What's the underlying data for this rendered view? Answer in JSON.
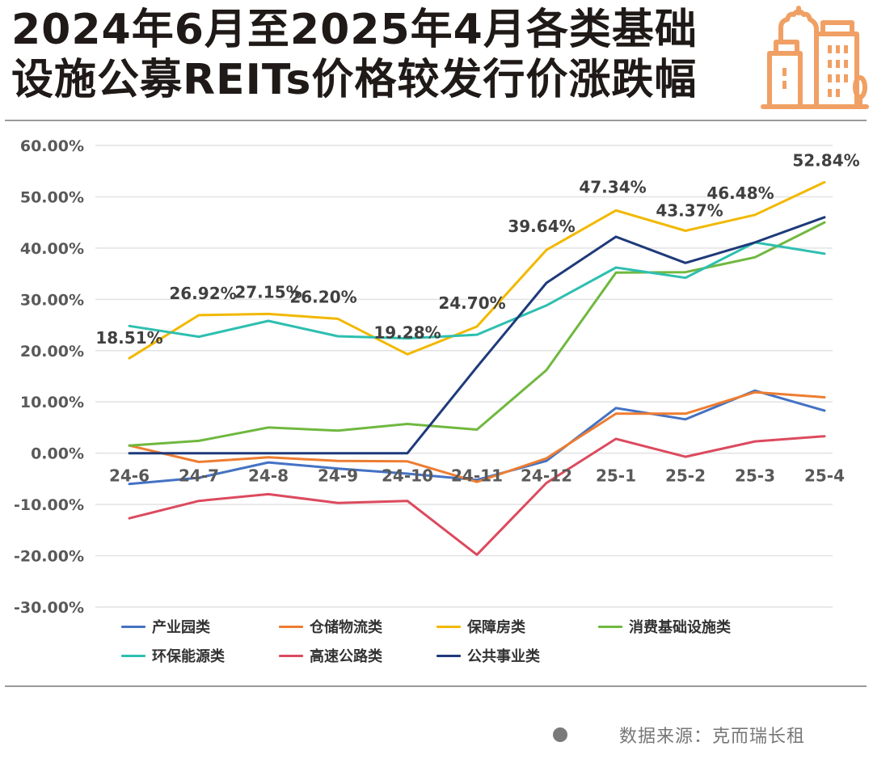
{
  "header": {
    "title_line1": "2024年6月至2025年4月各类基础",
    "title_line2": "设施公募REITs价格较发行价涨跌幅",
    "logo_icon": "city-buildings-icon",
    "logo_color": "#F0A064"
  },
  "source": {
    "bullet_icon": "dot-icon",
    "text": "数据来源：克而瑞长租"
  },
  "chart_data": {
    "type": "line",
    "title": "2024年6月至2025年4月各类基础设施公募REITs价格较发行价涨跌幅",
    "xlabel": "",
    "ylabel": "",
    "ylim": [
      -30,
      60
    ],
    "yticks": [
      60,
      50,
      40,
      30,
      20,
      10,
      0,
      -10,
      -20,
      -30
    ],
    "ytick_labels": [
      "60.00%",
      "50.00%",
      "40.00%",
      "30.00%",
      "20.00%",
      "10.00%",
      "0.00%",
      "-10.00%",
      "-20.00%",
      "-30.00%"
    ],
    "grid": true,
    "legend_position": "bottom",
    "categories": [
      "24-6",
      "24-7",
      "24-8",
      "24-9",
      "24-10",
      "24-11",
      "24-12",
      "25-1",
      "25-2",
      "25-3",
      "25-4"
    ],
    "series": [
      {
        "name": "产业园类",
        "color": "#4472C4",
        "values": [
          -6.0,
          -4.8,
          -1.8,
          -3.0,
          -4.0,
          -5.2,
          -1.5,
          8.8,
          6.6,
          12.2,
          8.3
        ]
      },
      {
        "name": "仓储物流类",
        "color": "#ED7D31",
        "values": [
          1.5,
          -1.7,
          -0.8,
          -1.5,
          -1.6,
          -5.6,
          -1.0,
          7.7,
          7.7,
          11.9,
          10.9
        ]
      },
      {
        "name": "保障房类",
        "color": "#F2B800",
        "values": [
          18.51,
          26.92,
          27.15,
          26.2,
          19.28,
          24.7,
          39.64,
          47.34,
          43.37,
          46.48,
          52.84
        ],
        "data_labels": [
          "18.51%",
          "26.92%",
          "27.15%",
          "26.20%",
          "19.28%",
          "24.70%",
          "39.64%",
          "47.34%",
          "43.37%",
          "46.48%",
          "52.84%"
        ]
      },
      {
        "name": "消费基础设施类",
        "color": "#70B83F",
        "values": [
          1.5,
          2.4,
          5.0,
          4.4,
          5.7,
          4.6,
          16.2,
          35.2,
          35.3,
          38.2,
          45.0
        ]
      },
      {
        "name": "环保能源类",
        "color": "#2EBFB0",
        "values": [
          24.8,
          22.7,
          25.8,
          22.8,
          22.4,
          23.1,
          28.8,
          36.2,
          34.2,
          41.1,
          38.9
        ]
      },
      {
        "name": "高速公路类",
        "color": "#DC4A5E",
        "values": [
          -12.7,
          -9.3,
          -8.0,
          -9.7,
          -9.3,
          -19.8,
          -5.8,
          2.8,
          -0.7,
          2.3,
          3.3
        ]
      },
      {
        "name": "公共事业类",
        "color": "#1F3A7A",
        "values": [
          0,
          0,
          0,
          0,
          0,
          16.8,
          33.2,
          42.2,
          37.1,
          41.1,
          46.0
        ]
      }
    ]
  }
}
